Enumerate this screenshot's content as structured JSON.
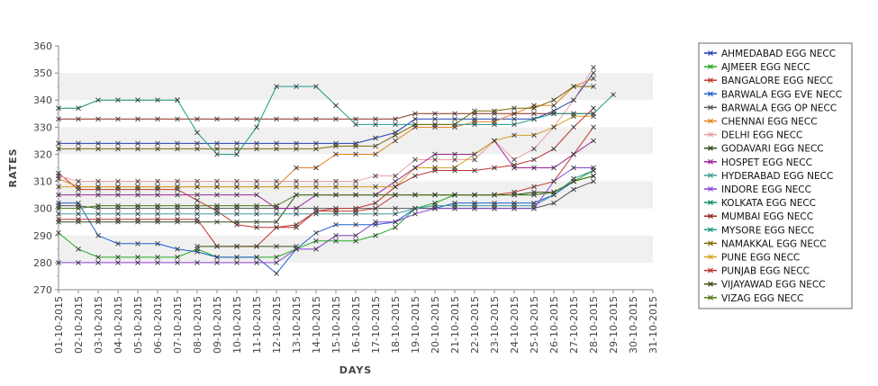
{
  "chart_data": {
    "type": "line",
    "xlabel": "DAYS",
    "ylabel": "RATES",
    "ylim": [
      270,
      360
    ],
    "yticks": [
      270,
      280,
      290,
      300,
      310,
      320,
      330,
      340,
      350,
      360
    ],
    "grid": "alternating horizontal bands",
    "legend_position": "right",
    "x": [
      "01-10-2015",
      "02-10-2015",
      "03-10-2015",
      "04-10-2015",
      "05-10-2015",
      "06-10-2015",
      "07-10-2015",
      "08-10-2015",
      "09-10-2015",
      "10-10-2015",
      "11-10-2015",
      "12-10-2015",
      "13-10-2015",
      "14-10-2015",
      "15-10-2015",
      "16-10-2015",
      "17-10-2015",
      "18-10-2015",
      "19-10-2015",
      "20-10-2015",
      "21-10-2015",
      "22-10-2015",
      "23-10-2015",
      "24-10-2015",
      "25-10-2015",
      "26-10-2015",
      "27-10-2015",
      "28-10-2015",
      "29-10-2015",
      "30-10-2015",
      "31-10-2015"
    ],
    "series": [
      {
        "name": "AHMEDABAD EGG NECC",
        "color": "#1f3fb5",
        "values": [
          324,
          324,
          324,
          324,
          324,
          324,
          324,
          324,
          324,
          324,
          324,
          324,
          324,
          324,
          324,
          324,
          326,
          328,
          333,
          333,
          333,
          333,
          333,
          333,
          333,
          336,
          340,
          350,
          null,
          null,
          null
        ]
      },
      {
        "name": "AJMEER EGG NECC",
        "color": "#22aa22",
        "values": [
          291,
          285,
          282,
          282,
          282,
          282,
          282,
          285,
          282,
          282,
          282,
          282,
          285,
          288,
          288,
          288,
          290,
          293,
          300,
          302,
          305,
          305,
          305,
          305,
          305,
          306,
          310,
          314,
          null,
          null,
          null
        ]
      },
      {
        "name": "BANGALORE EGG NECC",
        "color": "#c0392b",
        "values": [
          313,
          307,
          307,
          307,
          307,
          307,
          307,
          303,
          299,
          294,
          293,
          293,
          293,
          299,
          299,
          299,
          300,
          305,
          305,
          305,
          305,
          305,
          305,
          306,
          308,
          310,
          320,
          330,
          null,
          null,
          null
        ]
      },
      {
        "name": "BARWALA EGG EVE NECC",
        "color": "#1f5fd0",
        "values": [
          302,
          302,
          290,
          287,
          287,
          287,
          285,
          284,
          282,
          282,
          282,
          276,
          285,
          291,
          294,
          294,
          294,
          295,
          300,
          300,
          302,
          302,
          302,
          302,
          302,
          305,
          310,
          312,
          null,
          null,
          null
        ]
      },
      {
        "name": "BARWALA EGG OP NECC",
        "color": "#555555",
        "values": [
          301,
          301,
          300,
          300,
          300,
          300,
          300,
          300,
          300,
          300,
          300,
          300,
          300,
          300,
          300,
          300,
          300,
          300,
          300,
          300,
          300,
          300,
          300,
          300,
          300,
          302,
          307,
          310,
          null,
          null,
          null
        ]
      },
      {
        "name": "CHENNAI EGG NECC",
        "color": "#e67e22",
        "values": [
          311,
          308,
          308,
          308,
          308,
          308,
          308,
          308,
          308,
          308,
          308,
          308,
          315,
          315,
          320,
          320,
          320,
          325,
          330,
          330,
          330,
          332,
          332,
          335,
          338,
          338,
          345,
          348,
          null,
          null,
          null
        ]
      },
      {
        "name": "DELHI EGG NECC",
        "color": "#e8a0a0",
        "values": [
          312,
          310,
          310,
          310,
          310,
          310,
          310,
          310,
          310,
          310,
          310,
          310,
          310,
          310,
          310,
          310,
          312,
          312,
          318,
          318,
          318,
          318,
          325,
          318,
          322,
          330,
          340,
          352,
          null,
          null,
          null
        ]
      },
      {
        "name": "GODAVARI EGG NECC",
        "color": "#2e4d1a",
        "values": [
          295,
          295,
          295,
          295,
          295,
          295,
          295,
          295,
          295,
          295,
          295,
          295,
          305,
          305,
          305,
          305,
          305,
          305,
          305,
          305,
          305,
          305,
          305,
          305,
          306,
          306,
          310,
          312,
          null,
          null,
          null
        ]
      },
      {
        "name": "HOSPET EGG NECC",
        "color": "#a0209a",
        "values": [
          305,
          305,
          305,
          305,
          305,
          305,
          305,
          305,
          305,
          305,
          305,
          300,
          300,
          305,
          305,
          305,
          305,
          310,
          315,
          320,
          320,
          320,
          325,
          315,
          315,
          315,
          320,
          325,
          null,
          null,
          null
        ]
      },
      {
        "name": "HYDERABAD EGG NECC",
        "color": "#3a9a9a",
        "values": [
          298,
          298,
          298,
          298,
          298,
          298,
          298,
          298,
          298,
          298,
          298,
          298,
          298,
          298,
          298,
          298,
          298,
          298,
          300,
          301,
          301,
          301,
          301,
          301,
          301,
          305,
          311,
          314,
          null,
          null,
          null
        ]
      },
      {
        "name": "INDORE EGG NECC",
        "color": "#8a3fd0",
        "values": [
          280,
          280,
          280,
          280,
          280,
          280,
          280,
          280,
          280,
          280,
          280,
          280,
          285,
          285,
          290,
          290,
          295,
          295,
          298,
          300,
          300,
          300,
          300,
          300,
          300,
          310,
          315,
          315,
          null,
          null,
          null
        ]
      },
      {
        "name": "KOLKATA EGG NECC",
        "color": "#0e8a6a",
        "values": [
          337,
          337,
          340,
          340,
          340,
          340,
          340,
          null,
          null,
          null,
          null,
          null,
          null,
          null,
          null,
          null,
          null,
          null,
          null,
          null,
          null,
          null,
          null,
          null,
          null,
          null,
          null,
          null,
          null,
          null,
          null
        ]
      },
      {
        "name": "MUMBAI EGG NECC",
        "color": "#8b2a1a",
        "values": [
          333,
          333,
          333,
          333,
          333,
          333,
          333,
          333,
          333,
          333,
          333,
          333,
          333,
          333,
          333,
          333,
          333,
          333,
          335,
          335,
          335,
          335,
          335,
          335,
          335,
          335,
          335,
          335,
          null,
          null,
          null
        ]
      },
      {
        "name": "MYSORE EGG NECC",
        "color": "#1a9a8a",
        "values": [
          null,
          null,
          null,
          null,
          null,
          null,
          340,
          328,
          320,
          320,
          330,
          345,
          345,
          345,
          338,
          331,
          331,
          331,
          331,
          331,
          331,
          331,
          331,
          331,
          333,
          335,
          335,
          335,
          342,
          null,
          null
        ]
      },
      {
        "name": "NAMAKKAL EGG NECC",
        "color": "#7a6a00",
        "values": [
          322,
          322,
          322,
          322,
          322,
          322,
          322,
          322,
          322,
          322,
          322,
          322,
          322,
          322,
          323,
          323,
          323,
          327,
          331,
          331,
          331,
          336,
          336,
          337,
          337,
          340,
          345,
          345,
          null,
          null,
          null
        ]
      },
      {
        "name": "PUNE EGG NECC",
        "color": "#d4a020",
        "values": [
          308,
          308,
          308,
          308,
          308,
          308,
          308,
          308,
          308,
          308,
          308,
          308,
          308,
          308,
          308,
          308,
          308,
          308,
          315,
          315,
          315,
          320,
          325,
          327,
          327,
          330,
          334,
          334,
          null,
          null,
          null
        ]
      },
      {
        "name": "PUNJAB EGG NECC",
        "color": "#c03030",
        "values": [
          296,
          296,
          296,
          296,
          296,
          296,
          296,
          296,
          286,
          286,
          286,
          293,
          294,
          299,
          300,
          300,
          302,
          308,
          312,
          314,
          314,
          314,
          315,
          316,
          318,
          322,
          330,
          337,
          null,
          null,
          null
        ]
      },
      {
        "name": "VIJAYAWAD EGG NECC",
        "color": "#3a4a10",
        "values": [
          null,
          null,
          null,
          null,
          null,
          null,
          null,
          286,
          286,
          286,
          286,
          286,
          286,
          null,
          null,
          null,
          null,
          null,
          null,
          null,
          null,
          null,
          null,
          null,
          null,
          null,
          null,
          null,
          null,
          null,
          null
        ]
      },
      {
        "name": "VIZAG EGG NECC",
        "color": "#4a7a10",
        "values": [
          300,
          300,
          301,
          301,
          301,
          301,
          301,
          301,
          301,
          301,
          301,
          301,
          305,
          305,
          305,
          305,
          305,
          305,
          305,
          305,
          305,
          305,
          305,
          305,
          305,
          306,
          310,
          312,
          null,
          null,
          null
        ]
      }
    ]
  }
}
